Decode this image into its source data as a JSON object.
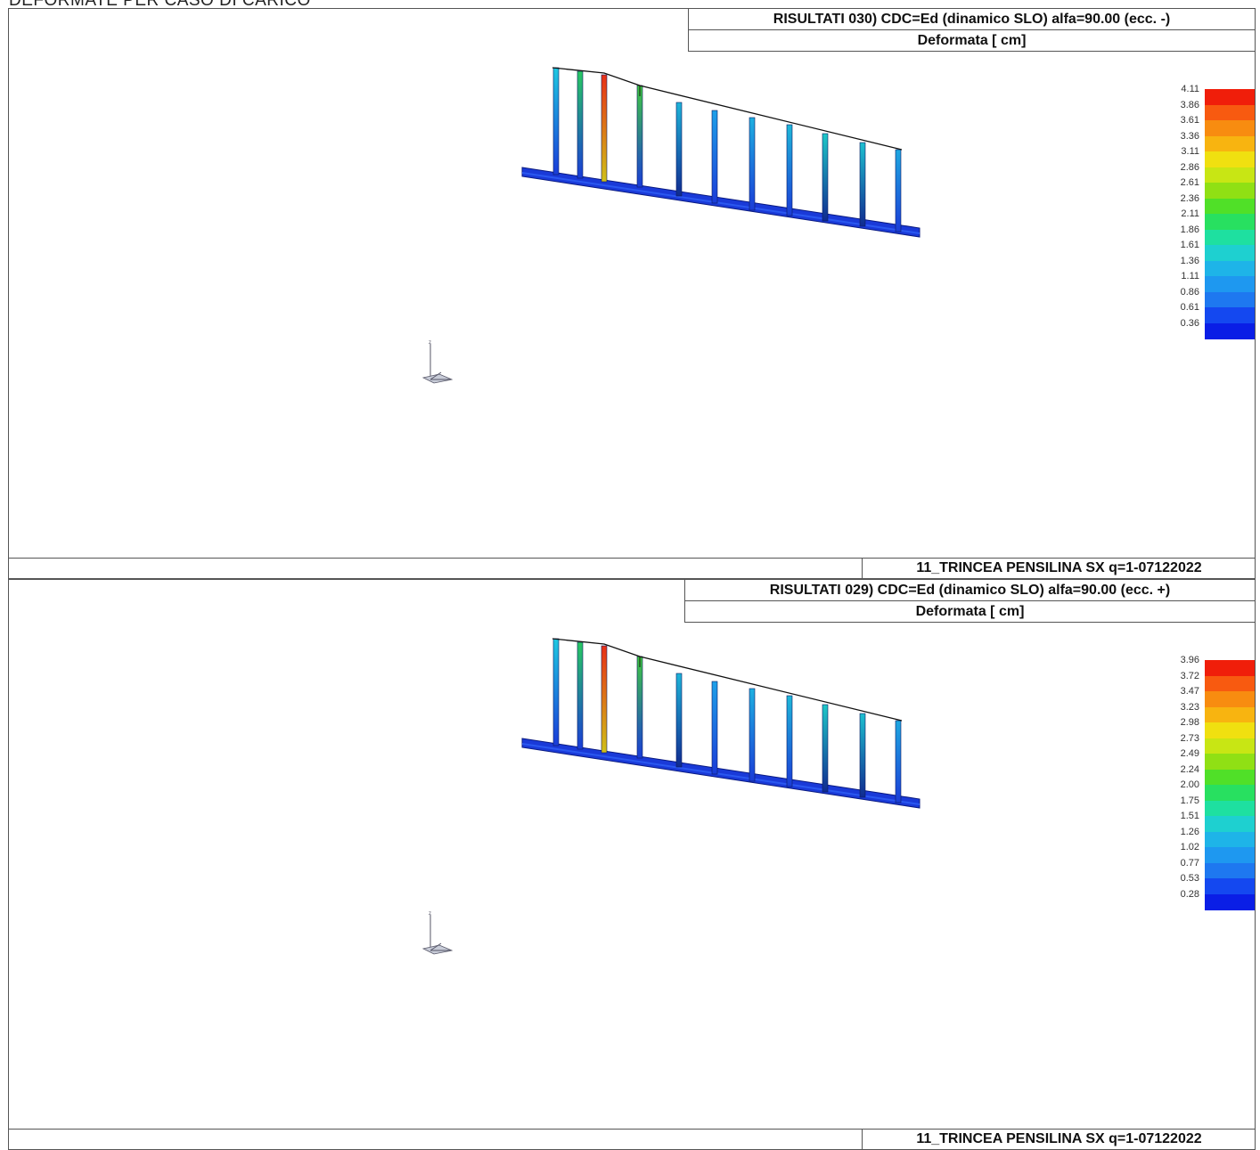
{
  "page": {
    "heading": "DEFORMATE PER CASO DI CARICO"
  },
  "palette": [
    "#0a1ee6",
    "#1448f0",
    "#1e78f0",
    "#1e98f0",
    "#1eb4e8",
    "#1ed0d0",
    "#1ee0a0",
    "#28e060",
    "#50e028",
    "#90e014",
    "#c8e614",
    "#f0e010",
    "#f8b410",
    "#f88c10",
    "#f85a10",
    "#f01e0a"
  ],
  "panels": [
    {
      "title": "RISULTATI    030) CDC=Ed (dinamico SLO) alfa=90.00 (ecc. -)",
      "subtitle": "Deformata [ cm]",
      "footer": "11_TRINCEA PENSILINA SX q=1-07122022",
      "legend": [
        "4.11",
        "3.86",
        "3.61",
        "3.36",
        "3.11",
        "2.86",
        "2.61",
        "2.36",
        "2.11",
        "1.86",
        "1.61",
        "1.36",
        "1.11",
        "0.86",
        "0.61",
        "0.36"
      ]
    },
    {
      "title": "RISULTATI    029) CDC=Ed (dinamico SLO) alfa=90.00 (ecc. +)",
      "subtitle": "Deformata [ cm]",
      "footer": "11_TRINCEA PENSILINA SX q=1-07122022",
      "legend": [
        "3.96",
        "3.72",
        "3.47",
        "3.23",
        "2.98",
        "2.73",
        "2.49",
        "2.24",
        "2.00",
        "1.75",
        "1.51",
        "1.26",
        "1.02",
        "0.77",
        "0.53",
        "0.28"
      ]
    }
  ]
}
